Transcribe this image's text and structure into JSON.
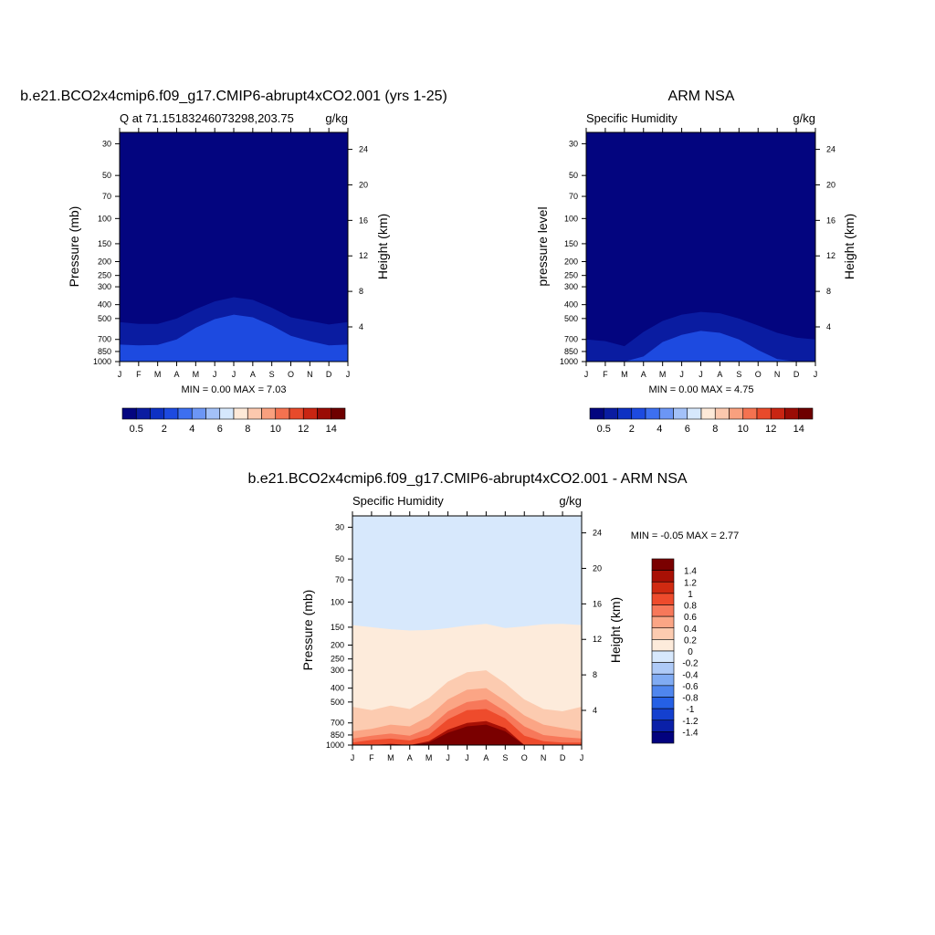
{
  "colors": {
    "seq": [
      "#03057f",
      "#0a1ca1",
      "#0e31c3",
      "#1d4ae0",
      "#3d6ff0",
      "#6c96f5",
      "#a3c1f8",
      "#d6e8fc",
      "#fde9d8",
      "#fcc8ae",
      "#f9a07e",
      "#f47250",
      "#e84a2b",
      "#c92512",
      "#9a0c05",
      "#6e0000"
    ],
    "diff": [
      "#02027e",
      "#0a20a8",
      "#1440cf",
      "#2560e5",
      "#4f86ee",
      "#80abf3",
      "#aecaf7",
      "#d7e8fc",
      "#fdebdb",
      "#fccbb0",
      "#fba585",
      "#f7785a",
      "#ee4b2c",
      "#d02a11",
      "#a81005",
      "#7a0000"
    ]
  },
  "months": [
    "J",
    "F",
    "M",
    "A",
    "M",
    "J",
    "J",
    "A",
    "S",
    "O",
    "N",
    "D",
    "J"
  ],
  "pressure_ticks": [
    "30",
    "50",
    "70",
    "100",
    "150",
    "200",
    "250",
    "300",
    "400",
    "500",
    "700",
    "850",
    "1000"
  ],
  "height_ticks": [
    "4",
    "8",
    "12",
    "16",
    "20",
    "24"
  ],
  "panels": {
    "top_left": {
      "suptitle": "b.e21.BCO2x4cmip6.f09_g17.CMIP6-abrupt4xCO2.001 (yrs 1-25)",
      "left_title": "Q at 71.15183246073298,203.75",
      "right_title": "g/kg",
      "ylabel": "Pressure (mb)",
      "ylabel_right": "Height (km)",
      "stats": "MIN =   0.00 MAX =   7.03"
    },
    "top_right": {
      "suptitle": "ARM NSA",
      "left_title": "Specific Humidity",
      "right_title": "g/kg",
      "ylabel": "pressure level",
      "ylabel_right": "Height (km)",
      "stats": "MIN =   0.00 MAX =  4.75"
    },
    "bottom": {
      "suptitle": "b.e21.BCO2x4cmip6.f09_g17.CMIP6-abrupt4xCO2.001 - ARM NSA",
      "left_title": "Specific Humidity",
      "right_title": "g/kg",
      "ylabel": "Pressure (mb)",
      "ylabel_right": "Height (km)",
      "stats": "MIN =  -0.05 MAX =   2.77"
    }
  },
  "colorbars": {
    "sequential_labels": [
      "0.5",
      "2",
      "4",
      "6",
      "8",
      "10",
      "12",
      "14"
    ],
    "difference_labels": [
      "1.4",
      "1.2",
      "1",
      "0.8",
      "0.6",
      "0.4",
      "0.2",
      "0",
      "-0.2",
      "-0.4",
      "-0.6",
      "-0.8",
      "-1",
      "-1.2",
      "-1.4"
    ]
  },
  "chart_data": [
    {
      "type": "heatmap",
      "title": "b.e21.BCO2x4cmip6.f09_g17.CMIP6-abrupt4xCO2.001 (yrs 1-25)",
      "subtitle": "Q at 71.15183246073298,203.75",
      "units": "g/kg",
      "xlabel": "",
      "ylabel": "Pressure (mb)",
      "ylabel_right": "Height (km)",
      "x": [
        "J",
        "F",
        "M",
        "A",
        "M",
        "J",
        "J",
        "A",
        "S",
        "O",
        "N",
        "D",
        "J"
      ],
      "y_scale": "log",
      "ylim": [
        1000,
        25
      ],
      "levels": [
        0.5,
        1,
        1.5,
        2,
        3,
        4,
        5,
        6,
        7,
        8,
        9,
        10,
        11,
        12,
        13,
        14
      ],
      "min": 0.0,
      "max": 7.03,
      "contours_surface_to_level_hPa": {
        "0.5": [
          530,
          545,
          545,
          500,
          430,
          380,
          355,
          370,
          420,
          490,
          520,
          550,
          530
        ],
        "1": [
          640,
          650,
          645,
          580,
          480,
          425,
          400,
          415,
          470,
          560,
          610,
          650,
          640
        ],
        "1.5": [
          760,
          770,
          765,
          700,
          580,
          505,
          470,
          490,
          560,
          660,
          720,
          770,
          760
        ],
        "2": [
          880,
          890,
          885,
          820,
          690,
          580,
          540,
          560,
          650,
          770,
          840,
          880,
          880
        ],
        "3": [
          1000,
          1000,
          1000,
          950,
          790,
          680,
          630,
          650,
          750,
          900,
          980,
          1000,
          1000
        ],
        "4": [
          1000,
          1000,
          1000,
          1000,
          890,
          770,
          720,
          740,
          840,
          990,
          1000,
          1000,
          1000
        ],
        "5": [
          1000,
          1000,
          1000,
          1000,
          960,
          840,
          800,
          810,
          905,
          1000,
          1000,
          1000,
          1000
        ],
        "6": [
          1000,
          1000,
          1000,
          1000,
          1000,
          920,
          880,
          890,
          980,
          1000,
          1000,
          1000,
          1000
        ],
        "7": [
          1000,
          1000,
          1000,
          1000,
          1000,
          1000,
          960,
          980,
          1000,
          1000,
          1000,
          1000,
          1000
        ]
      }
    },
    {
      "type": "heatmap",
      "title": "ARM NSA",
      "subtitle": "Specific Humidity",
      "units": "g/kg",
      "xlabel": "",
      "ylabel": "pressure level",
      "ylabel_right": "Height (km)",
      "x": [
        "J",
        "F",
        "M",
        "A",
        "M",
        "J",
        "J",
        "A",
        "S",
        "O",
        "N",
        "D",
        "J"
      ],
      "y_scale": "log",
      "ylim": [
        1000,
        25
      ],
      "levels": [
        0.5,
        1,
        1.5,
        2,
        3,
        4,
        5,
        6,
        7,
        8,
        9,
        10,
        11,
        12,
        13,
        14
      ],
      "min": 0.0,
      "max": 4.75,
      "contours_surface_to_level_hPa": {
        "0.5": [
          700,
          720,
          780,
          620,
          520,
          470,
          450,
          460,
          500,
          560,
          630,
          680,
          700
        ],
        "1": [
          900,
          920,
          960,
          780,
          620,
          560,
          530,
          545,
          600,
          700,
          810,
          890,
          900
        ],
        "1.5": [
          1000,
          1000,
          1000,
          920,
          730,
          650,
          610,
          630,
          700,
          830,
          960,
          1000,
          1000
        ],
        "2": [
          1000,
          1000,
          1000,
          1000,
          830,
          730,
          690,
          710,
          790,
          940,
          1000,
          1000,
          1000
        ],
        "3": [
          1000,
          1000,
          1000,
          1000,
          920,
          820,
          790,
          800,
          880,
          1000,
          1000,
          1000,
          1000
        ],
        "4": [
          1000,
          1000,
          1000,
          1000,
          1000,
          900,
          870,
          890,
          960,
          1000,
          1000,
          1000,
          1000
        ]
      }
    },
    {
      "type": "heatmap",
      "title": "b.e21.BCO2x4cmip6.f09_g17.CMIP6-abrupt4xCO2.001 - ARM NSA",
      "subtitle": "Specific Humidity",
      "units": "g/kg",
      "xlabel": "",
      "ylabel": "Pressure (mb)",
      "ylabel_right": "Height (km)",
      "x": [
        "J",
        "F",
        "M",
        "A",
        "M",
        "J",
        "J",
        "A",
        "S",
        "O",
        "N",
        "D",
        "J"
      ],
      "y_scale": "log",
      "ylim": [
        1000,
        25
      ],
      "levels": [
        -1.4,
        -1.2,
        -1,
        -0.8,
        -0.6,
        -0.4,
        -0.2,
        0,
        0.2,
        0.4,
        0.6,
        0.8,
        1,
        1.2,
        1.4
      ],
      "min": -0.05,
      "max": 2.77,
      "contours_surface_to_level_hPa": {
        "0": [
          145,
          150,
          155,
          158,
          157,
          152,
          146,
          142,
          152,
          148,
          143,
          142,
          145
        ],
        "0.2": [
          540,
          570,
          530,
          560,
          470,
          360,
          310,
          300,
          370,
          480,
          560,
          580,
          540
        ],
        "0.4": [
          800,
          770,
          720,
          740,
          630,
          480,
          410,
          400,
          490,
          620,
          720,
          760,
          800
        ],
        "0.6": [
          900,
          860,
          830,
          860,
          760,
          580,
          500,
          480,
          580,
          740,
          850,
          880,
          900
        ],
        "0.8": [
          960,
          920,
          900,
          930,
          850,
          660,
          570,
          560,
          650,
          860,
          940,
          960,
          960
        ],
        "1": [
          1000,
          970,
          950,
          980,
          900,
          720,
          640,
          620,
          700,
          950,
          1000,
          1000,
          1000
        ],
        "1.2": [
          1000,
          1000,
          980,
          1000,
          940,
          780,
          700,
          680,
          760,
          1000,
          1000,
          1000,
          1000
        ],
        "1.4": [
          1000,
          1000,
          1000,
          1000,
          960,
          820,
          740,
          720,
          800,
          1000,
          1000,
          1000,
          1000
        ]
      }
    }
  ]
}
